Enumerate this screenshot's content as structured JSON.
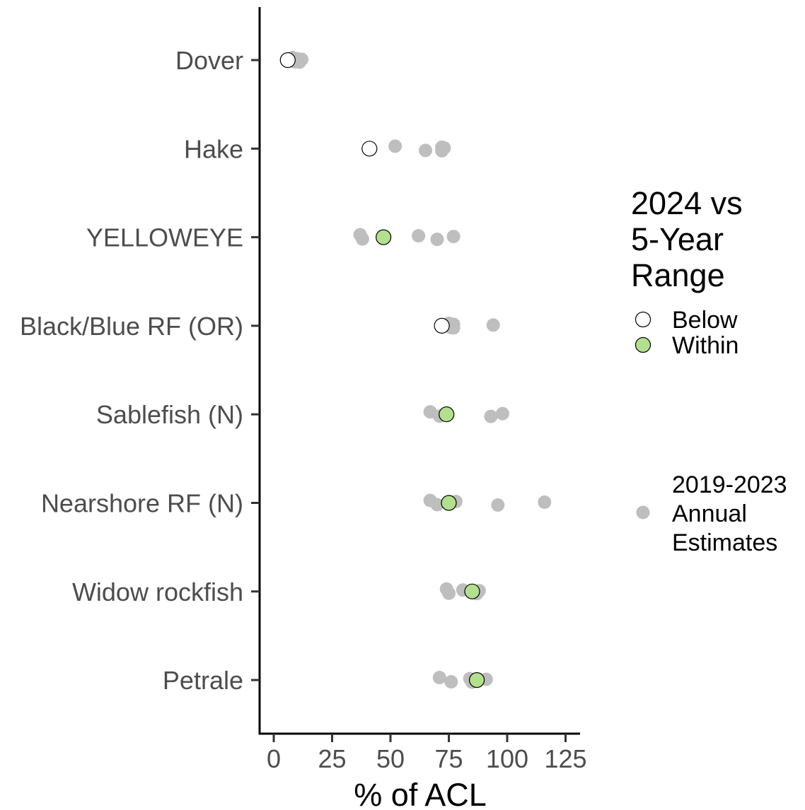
{
  "chart_data": {
    "type": "scatter",
    "orientation": "horizontal",
    "xlabel": "% of ACL",
    "ylabel": "",
    "xlim": [
      -6,
      132
    ],
    "xticks": [
      0,
      25,
      50,
      75,
      100,
      125
    ],
    "categories": [
      "Dover",
      "Hake",
      "YELLOWEYE",
      "Black/Blue RF (OR)",
      "Sablefish (N)",
      "Nearshore RF (N)",
      "Widow rockfish",
      "Petrale"
    ],
    "grid": false,
    "legend": {
      "position": "right",
      "title_lines": [
        "2024 vs",
        "5-Year",
        "Range"
      ],
      "entries": [
        {
          "label": "Below",
          "fill": "#ffffff",
          "stroke": "#000000"
        },
        {
          "label": "Within",
          "fill": "#b3e08e",
          "stroke": "#000000"
        }
      ],
      "annual_label_lines": [
        "2019-2023",
        "Annual",
        "Estimates"
      ],
      "annual_color": "#bebebe"
    },
    "series": [
      {
        "name": "2019-2023 Annual Estimates",
        "color": "#bebebe",
        "points": [
          {
            "category": "Dover",
            "values": [
              8,
              9,
              10,
              11,
              12
            ]
          },
          {
            "category": "Hake",
            "values": [
              52,
              65,
              72,
              72,
              73
            ]
          },
          {
            "category": "YELLOWEYE",
            "values": [
              37,
              38,
              62,
              70,
              77
            ]
          },
          {
            "category": "Black/Blue RF (OR)",
            "values": [
              75,
              76,
              77,
              77,
              94
            ]
          },
          {
            "category": "Sablefish (N)",
            "values": [
              67,
              71,
              74,
              93,
              98
            ]
          },
          {
            "category": "Nearshore RF (N)",
            "values": [
              67,
              70,
              78,
              96,
              116
            ]
          },
          {
            "category": "Widow rockfish",
            "values": [
              74,
              75,
              81,
              87,
              88
            ]
          },
          {
            "category": "Petrale",
            "values": [
              71,
              76,
              84,
              85,
              91
            ]
          }
        ]
      },
      {
        "name": "2024 vs 5-Year Range",
        "points": [
          {
            "category": "Dover",
            "value": 6,
            "status": "Below"
          },
          {
            "category": "Hake",
            "value": 41,
            "status": "Below"
          },
          {
            "category": "YELLOWEYE",
            "value": 47,
            "status": "Within"
          },
          {
            "category": "Black/Blue RF (OR)",
            "value": 72,
            "status": "Below"
          },
          {
            "category": "Sablefish (N)",
            "value": 74,
            "status": "Within"
          },
          {
            "category": "Nearshore RF (N)",
            "value": 75,
            "status": "Within"
          },
          {
            "category": "Widow rockfish",
            "value": 85,
            "status": "Within"
          },
          {
            "category": "Petrale",
            "value": 87,
            "status": "Within"
          }
        ]
      }
    ]
  }
}
